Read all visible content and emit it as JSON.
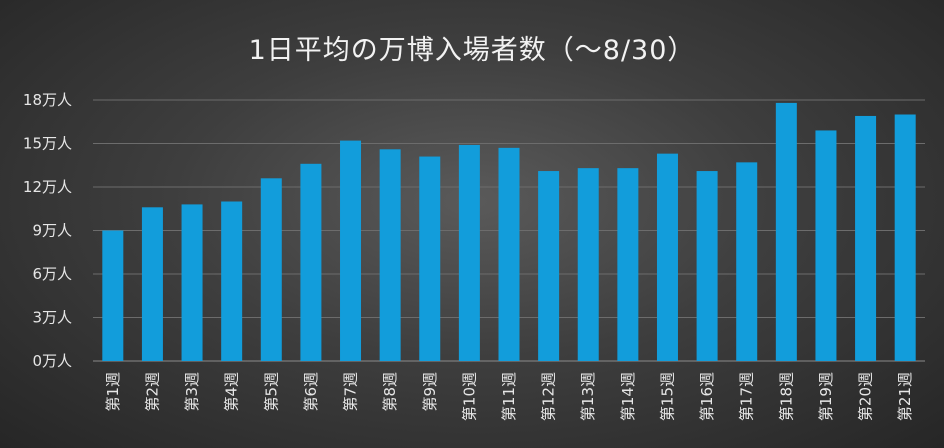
{
  "chart_data": {
    "type": "bar",
    "title": "1日平均の万博入場者数（～8/30）",
    "xlabel": "",
    "ylabel": "",
    "ylim": [
      0,
      18
    ],
    "y_ticks": [
      {
        "value": 0,
        "label": "0万人"
      },
      {
        "value": 3,
        "label": "3万人"
      },
      {
        "value": 6,
        "label": "6万人"
      },
      {
        "value": 9,
        "label": "9万人"
      },
      {
        "value": 12,
        "label": "12万人"
      },
      {
        "value": 15,
        "label": "15万人"
      },
      {
        "value": 18,
        "label": "18万人"
      }
    ],
    "categories": [
      "第1週",
      "第2週",
      "第3週",
      "第4週",
      "第5週",
      "第6週",
      "第7週",
      "第8週",
      "第9週",
      "第10週",
      "第11週",
      "第12週",
      "第13週",
      "第14週",
      "第15週",
      "第16週",
      "第17週",
      "第18週",
      "第19週",
      "第20週",
      "第21週"
    ],
    "values": [
      9.0,
      10.6,
      10.8,
      11.0,
      12.6,
      13.6,
      15.2,
      14.6,
      14.1,
      14.9,
      14.7,
      13.1,
      13.3,
      13.3,
      14.3,
      13.1,
      13.7,
      17.8,
      15.9,
      16.9,
      17.0
    ],
    "grid": true,
    "legend": "none",
    "colors": {
      "bar": "#129ddb",
      "grid": "#6c6c6c",
      "text": "#e6e6e6"
    }
  }
}
